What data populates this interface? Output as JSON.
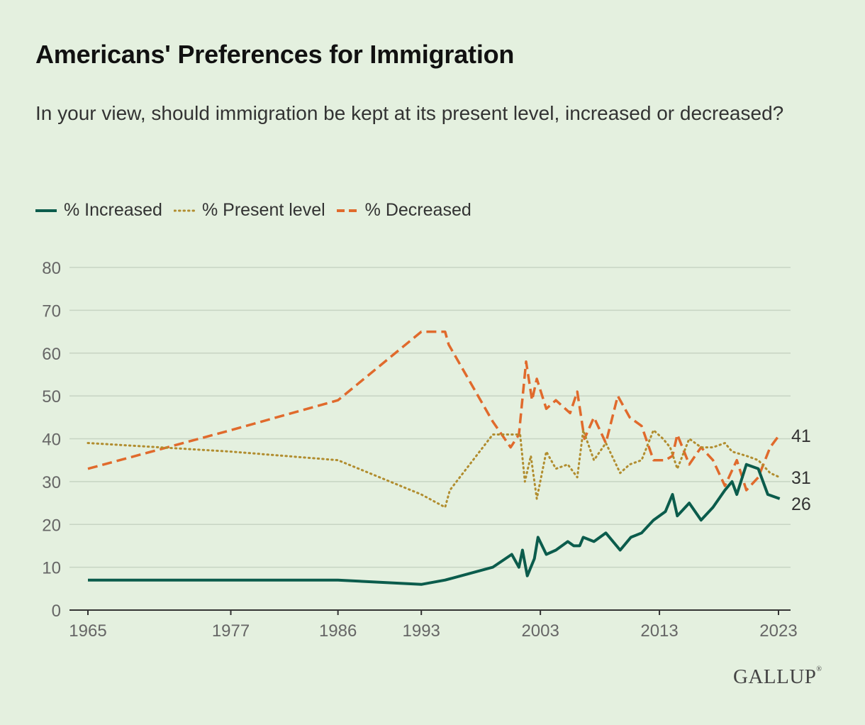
{
  "title": "Americans' Preferences for Immigration",
  "subtitle": "In your view, should immigration be kept at its present level, increased or decreased?",
  "legend": [
    {
      "label": "% Increased",
      "color": "#0b5c4c",
      "style": "solid"
    },
    {
      "label": "% Present level",
      "color": "#b18d2f",
      "style": "dotted"
    },
    {
      "label": "% Decreased",
      "color": "#e06a2c",
      "style": "dashed"
    }
  ],
  "logo": "GALLUP",
  "chart_data": {
    "type": "line",
    "xlabel": "",
    "ylabel": "",
    "xlim": [
      1965,
      2023
    ],
    "ylim": [
      0,
      80
    ],
    "y_ticks": [
      0,
      10,
      20,
      30,
      40,
      50,
      60,
      70,
      80
    ],
    "x_ticks": [
      1965,
      1977,
      1986,
      1993,
      2003,
      2013,
      2023
    ],
    "grid": true,
    "legend_position": "top-left",
    "end_labels": {
      "Decreased": "41",
      "Present level": "31",
      "Increased": "26"
    },
    "series": [
      {
        "name": "% Increased",
        "color": "#0b5c4c",
        "style": "solid",
        "points": [
          [
            1965,
            7
          ],
          [
            1986,
            7
          ],
          [
            1993,
            6
          ],
          [
            1995,
            7
          ],
          [
            1999,
            10
          ],
          [
            2000.6,
            13
          ],
          [
            2001.2,
            10
          ],
          [
            2001.5,
            14
          ],
          [
            2001.9,
            8
          ],
          [
            2002.5,
            12
          ],
          [
            2002.8,
            17
          ],
          [
            2003.5,
            13
          ],
          [
            2004.3,
            14
          ],
          [
            2005.3,
            16
          ],
          [
            2005.8,
            15
          ],
          [
            2006.3,
            15
          ],
          [
            2006.6,
            17
          ],
          [
            2007.5,
            16
          ],
          [
            2008.5,
            18
          ],
          [
            2009.7,
            14
          ],
          [
            2010.6,
            17
          ],
          [
            2011.5,
            18
          ],
          [
            2012.5,
            21
          ],
          [
            2013.5,
            23
          ],
          [
            2014.1,
            27
          ],
          [
            2014.5,
            22
          ],
          [
            2015.5,
            25
          ],
          [
            2016.5,
            21
          ],
          [
            2017.5,
            24
          ],
          [
            2018.5,
            28
          ],
          [
            2019.1,
            30
          ],
          [
            2019.5,
            27
          ],
          [
            2020.3,
            34
          ],
          [
            2021.3,
            33
          ],
          [
            2022.1,
            27
          ],
          [
            2023.1,
            26
          ]
        ]
      },
      {
        "name": "% Present level",
        "color": "#b18d2f",
        "style": "dotted",
        "points": [
          [
            1965,
            39
          ],
          [
            1977,
            37
          ],
          [
            1986,
            35
          ],
          [
            1993,
            27
          ],
          [
            1995,
            24
          ],
          [
            1995.4,
            28
          ],
          [
            1999,
            41
          ],
          [
            2000.6,
            41
          ],
          [
            2001.3,
            41
          ],
          [
            2001.7,
            30
          ],
          [
            2002.2,
            36
          ],
          [
            2002.7,
            26
          ],
          [
            2003.5,
            37
          ],
          [
            2004.3,
            33
          ],
          [
            2005.3,
            34
          ],
          [
            2006.1,
            31
          ],
          [
            2006.6,
            42
          ],
          [
            2007.5,
            35
          ],
          [
            2008.5,
            39
          ],
          [
            2009.7,
            32
          ],
          [
            2010.5,
            34
          ],
          [
            2011.5,
            35
          ],
          [
            2012.5,
            42
          ],
          [
            2013.3,
            40
          ],
          [
            2013.9,
            38
          ],
          [
            2014.5,
            33
          ],
          [
            2015.5,
            40
          ],
          [
            2016.5,
            38
          ],
          [
            2017.5,
            38
          ],
          [
            2018.5,
            39
          ],
          [
            2019.1,
            37
          ],
          [
            2020.3,
            36
          ],
          [
            2021.3,
            35
          ],
          [
            2022.3,
            32
          ],
          [
            2023.1,
            31
          ]
        ]
      },
      {
        "name": "% Decreased",
        "color": "#e06a2c",
        "style": "dashed",
        "points": [
          [
            1965,
            33
          ],
          [
            1977,
            42
          ],
          [
            1986,
            49
          ],
          [
            1993,
            65
          ],
          [
            1995,
            65
          ],
          [
            1995.3,
            62
          ],
          [
            1999,
            44
          ],
          [
            2000.5,
            38
          ],
          [
            2001.2,
            41
          ],
          [
            2001.8,
            58
          ],
          [
            2002.3,
            49
          ],
          [
            2002.7,
            54
          ],
          [
            2003.5,
            47
          ],
          [
            2004.3,
            49
          ],
          [
            2005.5,
            46
          ],
          [
            2006.1,
            51
          ],
          [
            2006.7,
            40
          ],
          [
            2007.5,
            45
          ],
          [
            2008.5,
            39
          ],
          [
            2009.5,
            50
          ],
          [
            2010.5,
            45
          ],
          [
            2011.5,
            43
          ],
          [
            2012.5,
            35
          ],
          [
            2013.5,
            35
          ],
          [
            2014.1,
            36
          ],
          [
            2014.5,
            41
          ],
          [
            2015.5,
            34
          ],
          [
            2016.5,
            38
          ],
          [
            2017.5,
            35
          ],
          [
            2018.5,
            29
          ],
          [
            2019.5,
            35
          ],
          [
            2020.3,
            28
          ],
          [
            2021.3,
            31
          ],
          [
            2022.3,
            38
          ],
          [
            2023.1,
            41
          ]
        ]
      }
    ]
  }
}
